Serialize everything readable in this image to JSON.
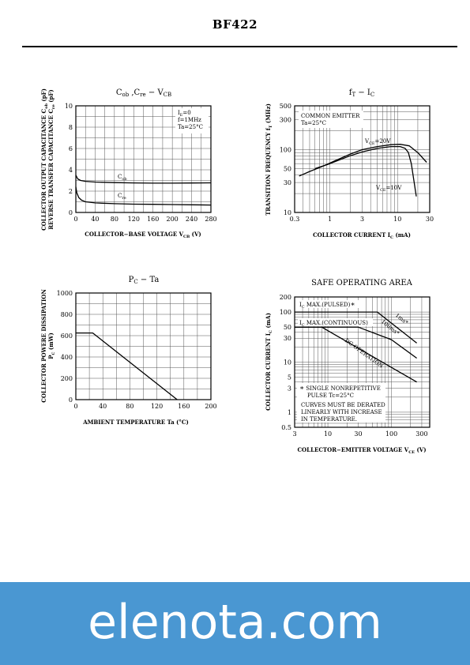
{
  "header": {
    "title": "BF422"
  },
  "watermark": "elenota.com",
  "colors": {
    "footer": "#4a97d2",
    "ink": "#000000"
  },
  "chart_data": [
    {
      "type": "line",
      "title": "Cob ,Cre − VCB",
      "xlabel": "COLLECTOR−BASE VOLTAGE VCB (V)",
      "ylabel": "COLLECTOR OUTPUT CAPACITANCE Cob (pF) / REVERSE TRANSFER CAPACITANCE Cre (pF)",
      "xlim": [
        0,
        280
      ],
      "ylim": [
        0,
        10
      ],
      "xticks": [
        "0",
        "40",
        "80",
        "120",
        "160",
        "200",
        "240",
        "280"
      ],
      "yticks": [
        "0",
        "2",
        "4",
        "6",
        "8",
        "10"
      ],
      "conditions": [
        "IE=0",
        "f=1MHz",
        "Ta=25°C"
      ],
      "series": [
        {
          "name": "Cob",
          "x": [
            0,
            4,
            10,
            20,
            40,
            80,
            120,
            160,
            200,
            240,
            280
          ],
          "y": [
            3.5,
            3.15,
            3.0,
            2.92,
            2.85,
            2.8,
            2.77,
            2.75,
            2.75,
            2.76,
            2.78
          ]
        },
        {
          "name": "Cre",
          "x": [
            0,
            2,
            6,
            12,
            20,
            40,
            80,
            120,
            160,
            200,
            240,
            280
          ],
          "y": [
            2.4,
            1.85,
            1.4,
            1.15,
            1.0,
            0.9,
            0.82,
            0.78,
            0.76,
            0.74,
            0.72,
            0.7
          ]
        }
      ]
    },
    {
      "type": "line",
      "title": "fT − IC",
      "xlabel": "COLLECTOR CURRENT IC (mA)",
      "ylabel": "TRANSITION FREQUENCY fT (MHz)",
      "xscale": "log",
      "yscale": "log",
      "xlim": [
        0.3,
        30
      ],
      "ylim": [
        10,
        500
      ],
      "xticks": [
        "0.3",
        "1",
        "3",
        "10",
        "30"
      ],
      "yticks": [
        "10",
        "30",
        "50",
        "100",
        "300",
        "500"
      ],
      "conditions": [
        "COMMON EMITTER",
        "Ta=25°C"
      ],
      "series": [
        {
          "name": "VCE=20V",
          "x": [
            0.35,
            0.5,
            0.8,
            1.2,
            2,
            3,
            5,
            8,
            11,
            15,
            20,
            27
          ],
          "y": [
            38,
            45,
            55,
            67,
            85,
            100,
            112,
            120,
            122,
            115,
            90,
            63
          ]
        },
        {
          "name": "VCE=10V",
          "x": [
            0.6,
            1,
            2,
            3,
            5,
            8,
            11,
            13,
            14.5,
            16,
            17.5,
            19
          ],
          "y": [
            50,
            60,
            80,
            92,
            105,
            112,
            112,
            105,
            90,
            60,
            32,
            18
          ]
        }
      ]
    },
    {
      "type": "line",
      "title": "PC − Ta",
      "xlabel": "AMBIENT TEMPERATURE Ta (°C)",
      "ylabel": "COLLECTOR POWERE DISSIPATION PC (mW)",
      "xlim": [
        0,
        200
      ],
      "ylim": [
        0,
        1000
      ],
      "xticks": [
        "0",
        "40",
        "80",
        "120",
        "160",
        "200"
      ],
      "yticks": [
        "0",
        "200",
        "400",
        "600",
        "800",
        "1000"
      ],
      "series": [
        {
          "name": "",
          "x": [
            0,
            25,
            150
          ],
          "y": [
            625,
            625,
            0
          ]
        }
      ]
    },
    {
      "type": "line",
      "title": "SAFE OPERATING AREA",
      "xlabel": "COLLECTOR−EMITTER VOLTAGE VCE (V)",
      "ylabel": "COLLECTOR CURRENT IC (mA)",
      "xscale": "log",
      "yscale": "log",
      "xlim": [
        3,
        400
      ],
      "ylim": [
        0.5,
        200
      ],
      "xticks": [
        "3",
        "10",
        "30",
        "100",
        "300"
      ],
      "yticks": [
        "0.5",
        "1",
        "3",
        "5",
        "10",
        "30",
        "50",
        "100",
        "200"
      ],
      "annotations": [
        "IC MAX.(PULSED)*",
        "IC MAX.(CONTINUOUS)",
        "1ms*",
        "100ms*",
        "DC OPERATION",
        "* SINGLE NONREPETITIVE",
        "PULSE Tc=25°C",
        "CURVES MUST BE DERATED",
        "LINEARLY WITH INCREASE",
        "IN TEMPERATURE."
      ],
      "series": [
        {
          "name": "1ms*",
          "x": [
            3,
            60,
            100,
            250
          ],
          "y": [
            100,
            100,
            60,
            24
          ]
        },
        {
          "name": "100ms*",
          "x": [
            3,
            30,
            100,
            250
          ],
          "y": [
            50,
            50,
            28,
            12
          ]
        },
        {
          "name": "DC OPERATION",
          "x": [
            3,
            8,
            250
          ],
          "y": [
            50,
            50,
            4
          ]
        }
      ]
    }
  ]
}
